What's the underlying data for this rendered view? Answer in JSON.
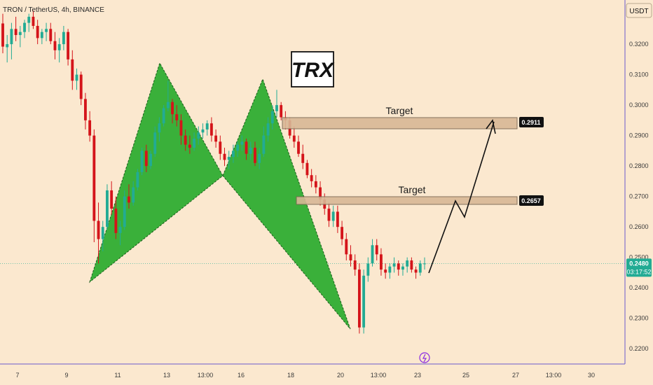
{
  "symbol_title": "TRON / TetherUS, 4h, BINANCE",
  "currency_label": "USDT",
  "chart_label": "TRX",
  "colors": {
    "background": "#fbe8cf",
    "bull": "#22ab94",
    "bear": "#d4141a",
    "pattern_fill": "#3ab03a",
    "zone_fill": "#d8b896",
    "price_tag": "#22ab94"
  },
  "chart_data": {
    "type": "candlestick",
    "y_range": [
      0.215,
      0.3345
    ],
    "y_ticks": [
      "0.3200",
      "0.3100",
      "0.3000",
      "0.2900",
      "0.2800",
      "0.2700",
      "0.2600",
      "0.2500",
      "0.2400",
      "0.2300",
      "0.2200"
    ],
    "x_ticks": [
      "7",
      "9",
      "11",
      "13",
      "13:00",
      "16",
      "18",
      "20",
      "13:00",
      "23",
      "25",
      "27",
      "13:00",
      "30"
    ],
    "current_price": "0.2480",
    "countdown": "03:17:52",
    "targets": [
      {
        "label": "Target",
        "price": "0.2911"
      },
      {
        "label": "Target",
        "price": "0.2657"
      }
    ],
    "pattern": "bat",
    "candles": [
      [
        0.3268,
        0.33,
        0.317,
        0.3192
      ],
      [
        0.319,
        0.323,
        0.314,
        0.32
      ],
      [
        0.32,
        0.327,
        0.315,
        0.325
      ],
      [
        0.325,
        0.329,
        0.321,
        0.323
      ],
      [
        0.323,
        0.326,
        0.319,
        0.324
      ],
      [
        0.324,
        0.328,
        0.322,
        0.327
      ],
      [
        0.327,
        0.33,
        0.324,
        0.329
      ],
      [
        0.329,
        0.331,
        0.325,
        0.326
      ],
      [
        0.326,
        0.328,
        0.32,
        0.322
      ],
      [
        0.322,
        0.325,
        0.32,
        0.324
      ],
      [
        0.324,
        0.327,
        0.321,
        0.325
      ],
      [
        0.325,
        0.327,
        0.32,
        0.321
      ],
      [
        0.321,
        0.324,
        0.315,
        0.318
      ],
      [
        0.318,
        0.322,
        0.314,
        0.32
      ],
      [
        0.32,
        0.326,
        0.318,
        0.324
      ],
      [
        0.324,
        0.325,
        0.313,
        0.315
      ],
      [
        0.315,
        0.318,
        0.305,
        0.308
      ],
      [
        0.308,
        0.312,
        0.305,
        0.31
      ],
      [
        0.31,
        0.311,
        0.3,
        0.302
      ],
      [
        0.302,
        0.304,
        0.292,
        0.295
      ],
      [
        0.295,
        0.298,
        0.288,
        0.29
      ],
      [
        0.29,
        0.292,
        0.255,
        0.262
      ],
      [
        0.262,
        0.268,
        0.248,
        0.256
      ],
      [
        0.256,
        0.262,
        0.252,
        0.26
      ],
      [
        0.26,
        0.274,
        0.259,
        0.272
      ],
      [
        0.272,
        0.275,
        0.264,
        0.266
      ],
      [
        0.266,
        0.27,
        0.256,
        0.258
      ],
      [
        0.258,
        0.262,
        0.254,
        0.26
      ],
      [
        0.26,
        0.272,
        0.259,
        0.27
      ],
      [
        0.27,
        0.274,
        0.266,
        0.268
      ],
      [
        0.268,
        0.275,
        0.267,
        0.273
      ],
      [
        0.273,
        0.279,
        0.272,
        0.278
      ],
      [
        0.278,
        0.286,
        0.277,
        0.285
      ],
      [
        0.285,
        0.287,
        0.278,
        0.28
      ],
      [
        0.28,
        0.285,
        0.279,
        0.284
      ],
      [
        0.284,
        0.293,
        0.283,
        0.291
      ],
      [
        0.291,
        0.296,
        0.288,
        0.294
      ],
      [
        0.294,
        0.3,
        0.293,
        0.299
      ],
      [
        0.299,
        0.308,
        0.298,
        0.301
      ],
      [
        0.301,
        0.302,
        0.294,
        0.297
      ],
      [
        0.297,
        0.3,
        0.293,
        0.295
      ],
      [
        0.295,
        0.297,
        0.287,
        0.29
      ],
      [
        0.29,
        0.292,
        0.285,
        0.287
      ],
      [
        0.287,
        0.29,
        0.284,
        0.286
      ],
      [
        0.286,
        0.291,
        0.285,
        0.289
      ],
      [
        0.289,
        0.293,
        0.287,
        0.291
      ],
      [
        0.291,
        0.294,
        0.289,
        0.292
      ],
      [
        0.292,
        0.295,
        0.29,
        0.294
      ],
      [
        0.294,
        0.296,
        0.288,
        0.29
      ],
      [
        0.29,
        0.292,
        0.286,
        0.288
      ],
      [
        0.288,
        0.29,
        0.282,
        0.284
      ],
      [
        0.284,
        0.286,
        0.28,
        0.282
      ],
      [
        0.282,
        0.285,
        0.279,
        0.283
      ],
      [
        0.283,
        0.287,
        0.281,
        0.285
      ],
      [
        0.285,
        0.288,
        0.283,
        0.287
      ],
      [
        0.287,
        0.29,
        0.285,
        0.288
      ],
      [
        0.288,
        0.289,
        0.282,
        0.284
      ],
      [
        0.284,
        0.288,
        0.282,
        0.286
      ],
      [
        0.286,
        0.288,
        0.28,
        0.281
      ],
      [
        0.281,
        0.286,
        0.279,
        0.284
      ],
      [
        0.284,
        0.293,
        0.283,
        0.29
      ],
      [
        0.29,
        0.296,
        0.288,
        0.294
      ],
      [
        0.294,
        0.3,
        0.292,
        0.298
      ],
      [
        0.298,
        0.305,
        0.296,
        0.3
      ],
      [
        0.3,
        0.301,
        0.295,
        0.296
      ],
      [
        0.296,
        0.298,
        0.292,
        0.295
      ],
      [
        0.295,
        0.296,
        0.289,
        0.29
      ],
      [
        0.29,
        0.293,
        0.286,
        0.288
      ],
      [
        0.288,
        0.29,
        0.283,
        0.284
      ],
      [
        0.284,
        0.287,
        0.279,
        0.281
      ],
      [
        0.281,
        0.282,
        0.276,
        0.277
      ],
      [
        0.277,
        0.279,
        0.273,
        0.275
      ],
      [
        0.275,
        0.277,
        0.271,
        0.273
      ],
      [
        0.273,
        0.275,
        0.267,
        0.269
      ],
      [
        0.269,
        0.271,
        0.264,
        0.266
      ],
      [
        0.266,
        0.268,
        0.26,
        0.262
      ],
      [
        0.262,
        0.267,
        0.26,
        0.265
      ],
      [
        0.265,
        0.267,
        0.258,
        0.26
      ],
      [
        0.26,
        0.262,
        0.254,
        0.256
      ],
      [
        0.256,
        0.258,
        0.249,
        0.251
      ],
      [
        0.251,
        0.254,
        0.247,
        0.249
      ],
      [
        0.249,
        0.251,
        0.244,
        0.246
      ],
      [
        0.246,
        0.248,
        0.225,
        0.227
      ],
      [
        0.227,
        0.246,
        0.225,
        0.244
      ],
      [
        0.244,
        0.25,
        0.242,
        0.248
      ],
      [
        0.248,
        0.256,
        0.247,
        0.254
      ],
      [
        0.254,
        0.256,
        0.249,
        0.251
      ],
      [
        0.251,
        0.253,
        0.244,
        0.246
      ],
      [
        0.246,
        0.248,
        0.243,
        0.245
      ],
      [
        0.245,
        0.248,
        0.243,
        0.247
      ],
      [
        0.247,
        0.25,
        0.245,
        0.248
      ],
      [
        0.248,
        0.249,
        0.244,
        0.246
      ],
      [
        0.246,
        0.248,
        0.244,
        0.247
      ],
      [
        0.247,
        0.25,
        0.245,
        0.249
      ],
      [
        0.249,
        0.25,
        0.245,
        0.246
      ],
      [
        0.246,
        0.247,
        0.243,
        0.245
      ],
      [
        0.245,
        0.249,
        0.244,
        0.248
      ],
      [
        0.248,
        0.25,
        0.246,
        0.248
      ]
    ]
  }
}
